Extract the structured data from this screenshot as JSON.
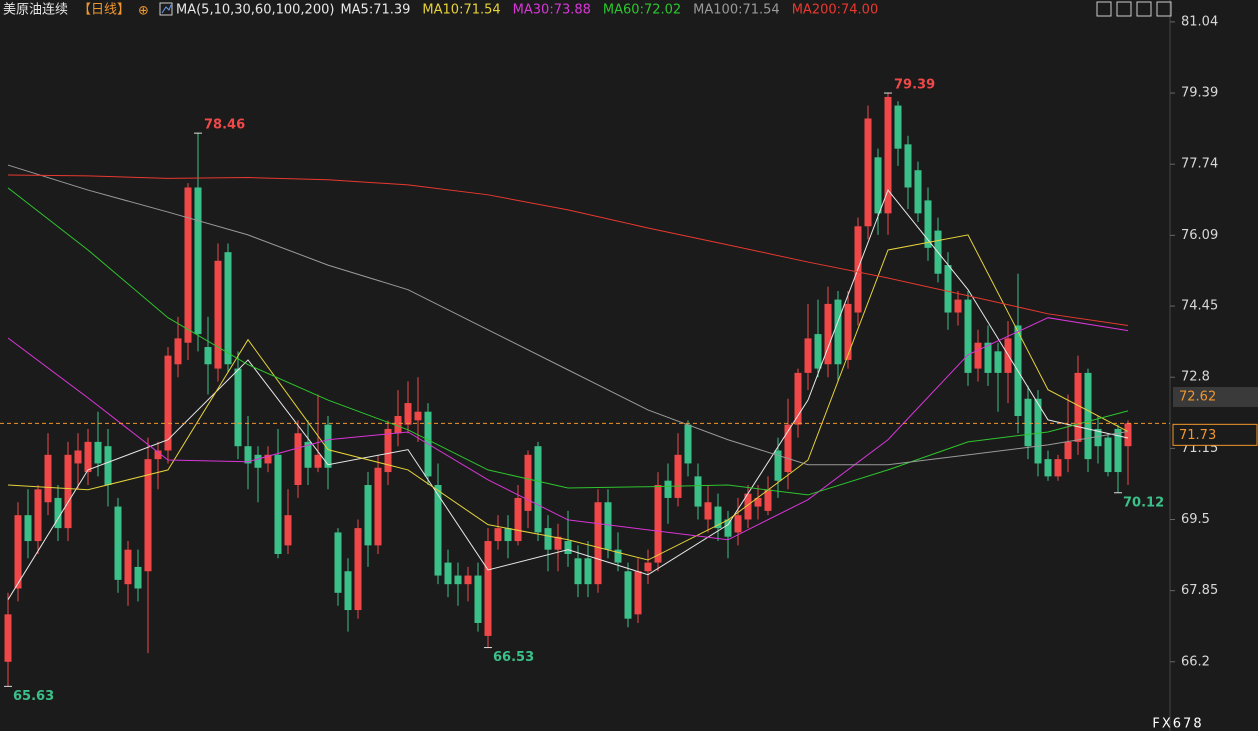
{
  "chart_data": {
    "type": "candlestick",
    "title": "美原油连续",
    "period": "【日线】",
    "ma_title": "MA(5,10,30,60,100,200)",
    "watermark": "FX678",
    "up_color": "#f04848",
    "down_color": "#3cc08a",
    "ylim": [
      64.85,
      81.2
    ],
    "yticks": [
      81.04,
      79.39,
      77.74,
      76.09,
      74.45,
      72.8,
      71.15,
      69.5,
      67.85,
      66.2
    ],
    "last_price": 71.73,
    "last_price_color": "#f0962e",
    "side_label": "72.62",
    "extremes": {
      "highs": [
        19,
        88
      ],
      "lows": [
        0,
        48,
        111
      ]
    },
    "ohlc": [
      [
        66.2,
        67.8,
        65.63,
        67.3
      ],
      [
        67.9,
        69.9,
        67.6,
        69.6
      ],
      [
        69.6,
        70.2,
        68.6,
        69.0
      ],
      [
        69.0,
        70.3,
        68.7,
        70.2
      ],
      [
        69.9,
        71.5,
        69.6,
        71.0
      ],
      [
        70.0,
        70.3,
        69.0,
        69.3
      ],
      [
        69.3,
        71.3,
        69.0,
        71.0
      ],
      [
        70.8,
        71.5,
        70.2,
        71.1
      ],
      [
        70.6,
        71.6,
        70.3,
        71.3
      ],
      [
        71.3,
        72.0,
        70.5,
        70.8
      ],
      [
        71.2,
        71.6,
        69.8,
        70.3
      ],
      [
        69.8,
        70.0,
        67.8,
        68.1
      ],
      [
        68.0,
        69.0,
        67.5,
        68.8
      ],
      [
        68.4,
        68.8,
        67.6,
        67.9
      ],
      [
        68.3,
        71.4,
        66.4,
        70.9
      ],
      [
        70.9,
        71.3,
        70.2,
        71.1
      ],
      [
        71.1,
        73.5,
        70.8,
        73.3
      ],
      [
        73.1,
        74.2,
        72.8,
        73.7
      ],
      [
        73.6,
        77.3,
        73.2,
        77.2
      ],
      [
        77.2,
        78.46,
        73.4,
        73.8
      ],
      [
        73.5,
        74.2,
        72.4,
        73.1
      ],
      [
        73.0,
        75.9,
        72.7,
        75.5
      ],
      [
        75.7,
        75.9,
        72.9,
        73.1
      ],
      [
        73.0,
        73.4,
        70.9,
        71.2
      ],
      [
        71.2,
        71.9,
        70.2,
        70.8
      ],
      [
        71.0,
        71.2,
        69.9,
        70.7
      ],
      [
        70.8,
        71.2,
        70.6,
        71.0
      ],
      [
        71.0,
        71.6,
        68.6,
        68.7
      ],
      [
        68.9,
        70.2,
        68.7,
        69.6
      ],
      [
        70.3,
        71.8,
        70.0,
        71.5
      ],
      [
        71.3,
        71.8,
        70.3,
        70.7
      ],
      [
        70.7,
        72.4,
        70.6,
        71.0
      ],
      [
        71.7,
        71.9,
        70.2,
        70.7
      ],
      [
        69.2,
        69.3,
        67.5,
        67.8
      ],
      [
        68.3,
        68.6,
        66.9,
        67.4
      ],
      [
        67.4,
        69.5,
        67.2,
        69.3
      ],
      [
        70.3,
        70.6,
        68.4,
        68.9
      ],
      [
        68.9,
        71.0,
        68.7,
        70.7
      ],
      [
        70.6,
        71.8,
        70.3,
        71.6
      ],
      [
        71.5,
        72.5,
        71.2,
        71.9
      ],
      [
        71.7,
        72.7,
        71.5,
        72.2
      ],
      [
        71.8,
        72.8,
        71.3,
        72.0
      ],
      [
        72.0,
        72.2,
        70.3,
        70.5
      ],
      [
        70.3,
        70.8,
        68.0,
        68.2
      ],
      [
        68.5,
        68.8,
        67.7,
        68.0
      ],
      [
        68.2,
        68.5,
        67.5,
        68.0
      ],
      [
        68.0,
        68.4,
        67.6,
        68.2
      ],
      [
        68.2,
        68.5,
        66.9,
        67.1
      ],
      [
        66.8,
        69.3,
        66.53,
        69.0
      ],
      [
        69.0,
        69.6,
        68.8,
        69.3
      ],
      [
        69.3,
        69.6,
        68.6,
        69.0
      ],
      [
        69.0,
        70.3,
        68.9,
        70.0
      ],
      [
        69.7,
        71.1,
        69.3,
        71.0
      ],
      [
        71.2,
        71.3,
        69.0,
        69.2
      ],
      [
        69.3,
        69.6,
        68.3,
        68.8
      ],
      [
        68.8,
        69.4,
        68.3,
        69.1
      ],
      [
        69.0,
        69.7,
        68.4,
        68.7
      ],
      [
        68.6,
        68.9,
        67.7,
        68.0
      ],
      [
        68.6,
        69.0,
        67.7,
        68.0
      ],
      [
        68.0,
        70.2,
        67.8,
        69.9
      ],
      [
        69.9,
        70.2,
        68.6,
        68.8
      ],
      [
        68.8,
        69.2,
        68.3,
        68.5
      ],
      [
        68.3,
        68.5,
        67.0,
        67.2
      ],
      [
        67.3,
        68.6,
        67.1,
        68.3
      ],
      [
        68.3,
        68.8,
        68.0,
        68.5
      ],
      [
        68.5,
        70.6,
        68.3,
        70.3
      ],
      [
        70.4,
        70.8,
        69.4,
        70.0
      ],
      [
        70.0,
        71.5,
        69.8,
        71.0
      ],
      [
        71.7,
        71.8,
        70.5,
        70.8
      ],
      [
        70.5,
        70.8,
        69.5,
        69.8
      ],
      [
        69.5,
        70.3,
        69.2,
        69.9
      ],
      [
        69.8,
        70.1,
        69.0,
        69.3
      ],
      [
        69.5,
        69.7,
        68.6,
        69.1
      ],
      [
        69.2,
        70.0,
        68.9,
        69.6
      ],
      [
        69.5,
        70.3,
        69.3,
        70.1
      ],
      [
        69.8,
        70.3,
        69.5,
        70.0
      ],
      [
        69.7,
        70.5,
        69.6,
        70.2
      ],
      [
        71.1,
        71.4,
        70.0,
        70.4
      ],
      [
        70.6,
        72.3,
        70.2,
        71.7
      ],
      [
        71.7,
        73.0,
        71.4,
        72.9
      ],
      [
        72.9,
        74.5,
        72.5,
        73.7
      ],
      [
        73.8,
        74.6,
        72.8,
        73.0
      ],
      [
        73.1,
        74.9,
        72.8,
        74.5
      ],
      [
        74.6,
        74.8,
        72.7,
        73.1
      ],
      [
        73.2,
        74.8,
        73.0,
        74.5
      ],
      [
        74.3,
        76.5,
        74.0,
        76.3
      ],
      [
        76.3,
        79.1,
        76.0,
        78.8
      ],
      [
        77.9,
        78.1,
        76.1,
        76.6
      ],
      [
        76.6,
        79.39,
        76.1,
        79.3
      ],
      [
        79.1,
        79.2,
        77.7,
        78.1
      ],
      [
        78.2,
        78.4,
        76.7,
        77.2
      ],
      [
        77.6,
        77.8,
        76.4,
        76.6
      ],
      [
        76.9,
        77.2,
        75.5,
        75.8
      ],
      [
        76.2,
        76.5,
        75.0,
        75.2
      ],
      [
        75.4,
        75.7,
        73.9,
        74.3
      ],
      [
        74.3,
        74.8,
        74.0,
        74.6
      ],
      [
        74.6,
        74.8,
        72.6,
        72.9
      ],
      [
        73.0,
        73.9,
        72.7,
        73.6
      ],
      [
        73.6,
        74.0,
        72.6,
        72.9
      ],
      [
        73.4,
        73.6,
        72.0,
        72.9
      ],
      [
        72.9,
        74.1,
        72.2,
        73.7
      ],
      [
        74.0,
        75.2,
        71.5,
        71.9
      ],
      [
        72.3,
        72.6,
        70.9,
        71.2
      ],
      [
        72.3,
        72.5,
        70.5,
        70.8
      ],
      [
        70.9,
        71.1,
        70.4,
        70.5
      ],
      [
        70.5,
        71.0,
        70.4,
        70.9
      ],
      [
        70.9,
        72.4,
        70.6,
        71.3
      ],
      [
        71.3,
        73.3,
        71.0,
        72.9
      ],
      [
        72.9,
        73.0,
        70.6,
        70.9
      ],
      [
        71.6,
        71.9,
        70.8,
        71.2
      ],
      [
        71.4,
        71.5,
        70.5,
        70.6
      ],
      [
        71.6,
        71.7,
        70.12,
        70.6
      ],
      [
        71.2,
        71.8,
        70.3,
        71.73
      ]
    ],
    "series": [
      {
        "name": "MA5:71.39",
        "color": "#e8e8e8",
        "x": [
          0,
          8,
          16,
          24,
          32,
          40,
          48,
          56,
          64,
          72,
          80,
          88,
          96,
          104,
          112
        ],
        "values": [
          67.64,
          70.65,
          71.35,
          73.2,
          70.77,
          71.12,
          68.33,
          68.8,
          68.22,
          69.38,
          72.27,
          77.14,
          74.83,
          71.81,
          71.39
        ]
      },
      {
        "name": "MA10:71.54",
        "color": "#e6d23a",
        "x": [
          0,
          8,
          16,
          24,
          32,
          40,
          48,
          56,
          64,
          72,
          80,
          88,
          96,
          104,
          112
        ],
        "values": [
          70.3,
          70.19,
          70.65,
          73.67,
          71.12,
          70.65,
          69.38,
          69.03,
          68.56,
          69.49,
          70.88,
          75.75,
          76.1,
          72.51,
          71.54
        ]
      },
      {
        "name": "MA30:73.88",
        "color": "#d836d8",
        "x": [
          0,
          8,
          16,
          24,
          32,
          40,
          48,
          56,
          64,
          72,
          80,
          88,
          96,
          104,
          112
        ],
        "values": [
          73.71,
          72.32,
          70.88,
          70.84,
          71.35,
          71.53,
          70.42,
          69.49,
          69.26,
          69.03,
          69.96,
          71.35,
          73.32,
          74.18,
          73.88
        ]
      },
      {
        "name": "MA60:72.02",
        "color": "#2ec52e",
        "x": [
          0,
          8,
          16,
          24,
          32,
          40,
          48,
          56,
          64,
          72,
          80,
          88,
          96,
          104,
          112
        ],
        "values": [
          77.19,
          75.75,
          74.18,
          73.09,
          72.27,
          71.58,
          70.65,
          70.23,
          70.26,
          70.3,
          70.07,
          70.65,
          71.3,
          71.53,
          72.02
        ]
      },
      {
        "name": "MA100:71.54",
        "color": "#9a9a9a",
        "x": [
          0,
          8,
          16,
          24,
          32,
          40,
          48,
          56,
          64,
          72,
          80,
          88,
          96,
          104,
          112
        ],
        "values": [
          77.72,
          77.14,
          76.63,
          76.1,
          75.4,
          74.83,
          73.9,
          72.97,
          72.04,
          71.35,
          70.77,
          70.77,
          71.0,
          71.23,
          71.54
        ]
      },
      {
        "name": "MA200:74.00",
        "color": "#e8392f",
        "x": [
          0,
          8,
          16,
          24,
          32,
          40,
          48,
          56,
          64,
          72,
          80,
          88,
          96,
          104,
          112
        ],
        "values": [
          77.49,
          77.47,
          77.41,
          77.43,
          77.38,
          77.26,
          77.03,
          76.68,
          76.26,
          75.87,
          75.47,
          75.1,
          74.69,
          74.27,
          74.0
        ]
      }
    ]
  }
}
